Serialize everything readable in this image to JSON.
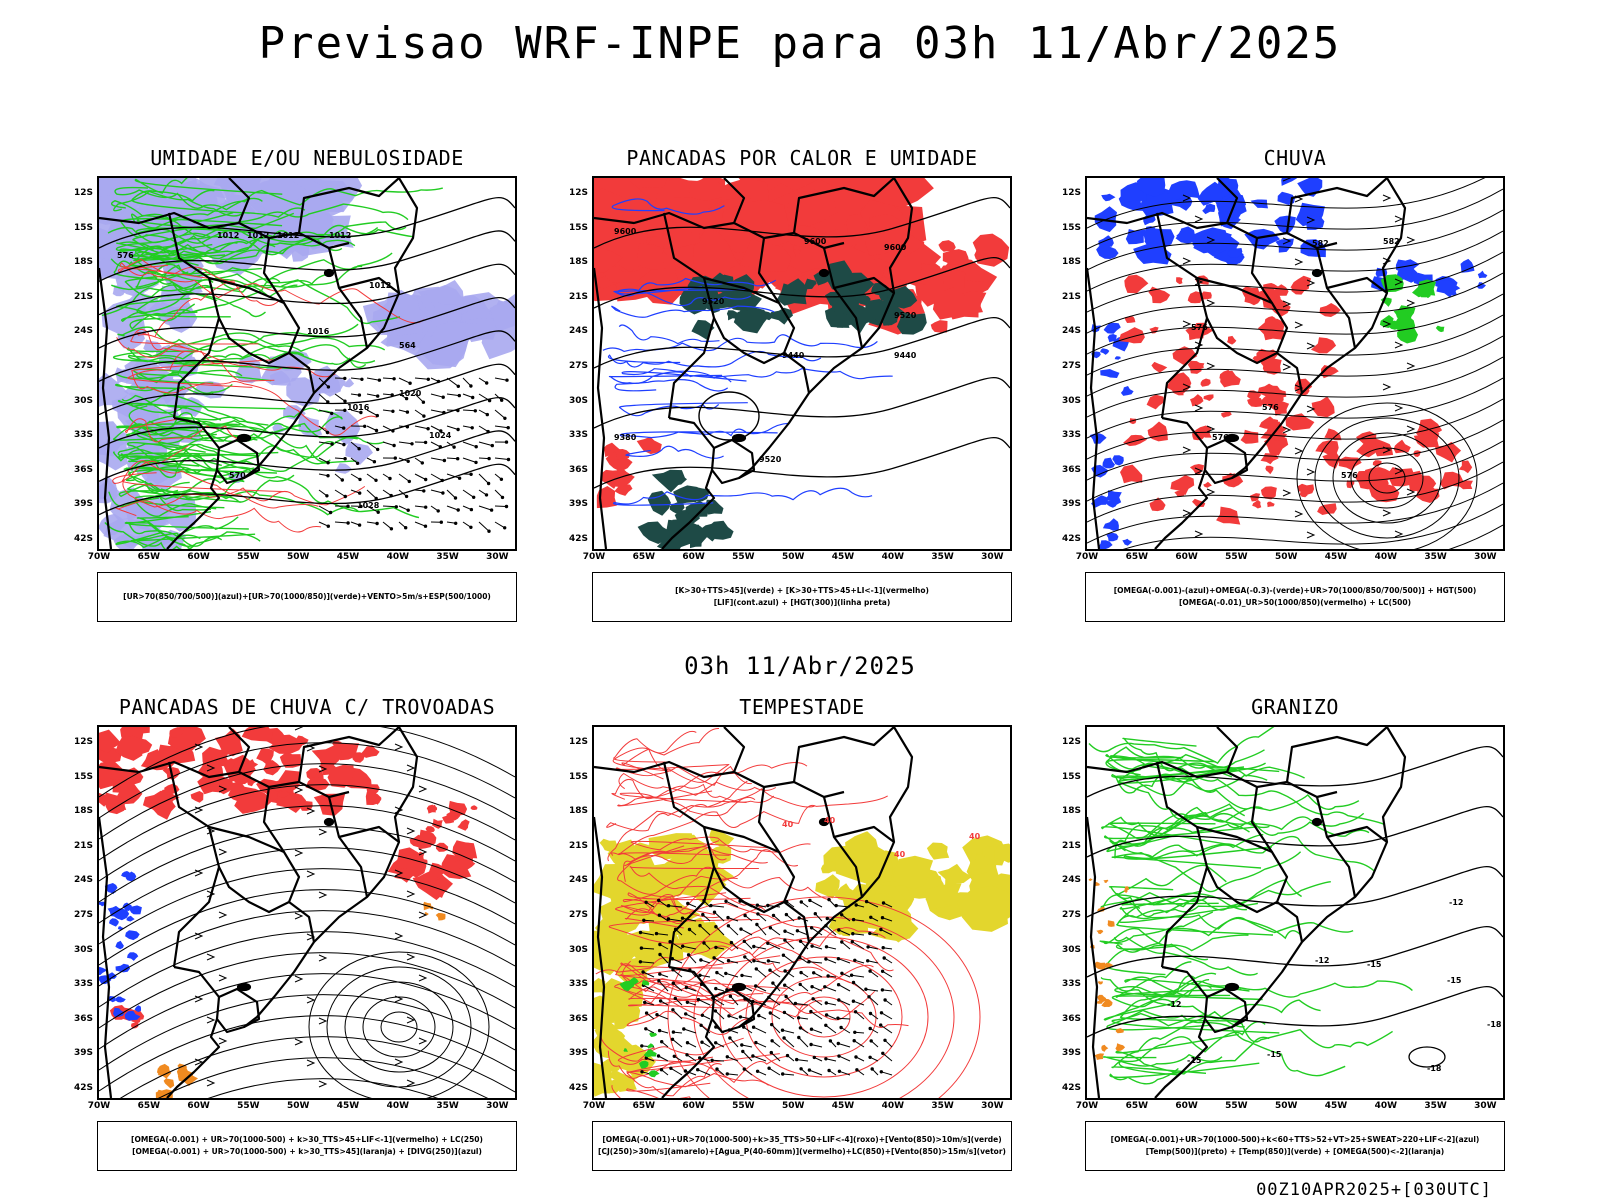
{
  "header": {
    "title": "Previsao WRF-INPE  para 03h 11/Abr/2025"
  },
  "middle_title": "03h 11/Abr/2025",
  "footer": "00Z10APR2025+[030UTC]",
  "axes": {
    "lat_labels": [
      "12S",
      "15S",
      "18S",
      "21S",
      "24S",
      "27S",
      "30S",
      "33S",
      "36S",
      "39S",
      "42S"
    ],
    "lon_labels": [
      "70W",
      "65W",
      "60W",
      "55W",
      "50W",
      "45W",
      "40W",
      "35W",
      "30W"
    ]
  },
  "colors": {
    "blue": "#1f3fff",
    "lavender": "#a8a8f0",
    "green": "#22cc22",
    "red": "#f23b3b",
    "dark_teal": "#1e4a46",
    "yellow": "#e3d62d",
    "orange": "#f08a20",
    "black": "#000000"
  },
  "panels": [
    {
      "title": "UMIDADE E/OU NEBULOSIDADE",
      "legend": [
        "[UR>70(850/700/500)](azul)+[UR>70(1000/850)](verde)+VENTO>5m/s+ESP(500/1000)"
      ],
      "contour_labels": [
        "1012",
        "1012",
        "1012",
        "1012",
        "1012",
        "1016",
        "1016",
        "1020",
        "1024",
        "1028",
        "570",
        "576",
        "564"
      ]
    },
    {
      "title": "PANCADAS POR CALOR E UMIDADE",
      "legend": [
        "[K>30+TTS>45](verde)  +  [K>30+TTS>45+LI<-1](vermelho)",
        "[LIF](cont.azul)  +  [HGT(300)](linha preta)"
      ],
      "contour_labels": [
        "9600",
        "9600",
        "9600",
        "9520",
        "9520",
        "9440",
        "9440",
        "9380",
        "9520"
      ]
    },
    {
      "title": "CHUVA",
      "legend": [
        "[OMEGA(-0.001)-(azul)+OMEGA(-0.3)-(verde)+UR>70(1000/850/700/500)]  +  HGT(500)",
        "[OMEGA(-0.01)_UR>50(1000/850)(vermelho)  +  LC(500)"
      ],
      "contour_labels": [
        "582",
        "582",
        "576",
        "576",
        "576",
        "576"
      ]
    },
    {
      "title": "PANCADAS DE CHUVA C/ TROVOADAS",
      "legend": [
        "[OMEGA(-0.001)  +  UR>70(1000-500)  +  k>30_TTS>45+LIF<-1](vermelho)  +  LC(250)",
        "[OMEGA(-0.001)  +  UR>70(1000-500)  +  k>30_TTS>45](laranja)  +  [DIVG(250)](azul)"
      ],
      "contour_labels": []
    },
    {
      "title": "TEMPESTADE",
      "legend": [
        "[OMEGA(-0.001)+UR>70(1000-500)+k>35_TTS>50+LIF<-4](roxo)+[Vento(850)>10m/s](verde)",
        "[CJ(250)>30m/s](amarelo)+[Agua_P(40-60mm)](vermelho)+LC(850)+[Vento(850)>15m/s](vetor)"
      ],
      "contour_labels": [
        "40",
        "40",
        "40",
        "40"
      ]
    },
    {
      "title": "GRANIZO",
      "legend": [
        "[OMEGA(-0.001)+UR>70(1000-500)+k<60+TTS>52+VT>25+SWEAT>220+LIF<-2](azul)",
        "[Temp(500)](preto)  +  [Temp(850)](verde)  +  [OMEGA(500)<-2](laranja)"
      ],
      "contour_labels": [
        "-12",
        "-12",
        "-12",
        "-15",
        "-15",
        "-15",
        "-15",
        "-18",
        "-18"
      ]
    }
  ]
}
